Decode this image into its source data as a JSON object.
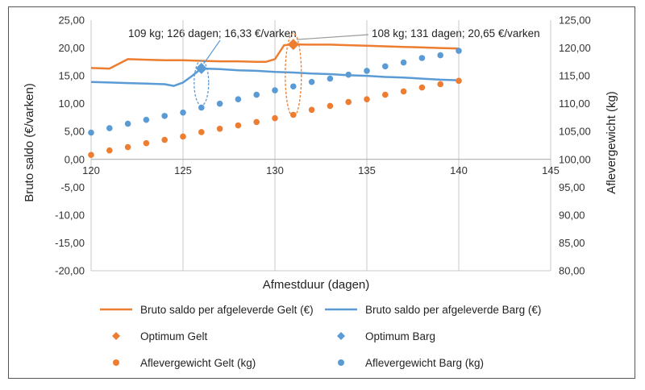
{
  "chart_data": {
    "type": "line",
    "xlabel": "Afmestduur (dagen)",
    "ylabel": "Bruto saldo (€/varken)",
    "y2label": "Aflevergewicht (kg)",
    "xlim": [
      120,
      145
    ],
    "ylim": [
      -20,
      25
    ],
    "y2lim": [
      80,
      125
    ],
    "x_ticks": [
      "120",
      "125",
      "130",
      "135",
      "140",
      "145"
    ],
    "y_ticks": [
      "-20,00",
      "-15,00",
      "-10,00",
      "-5,00",
      "0,00",
      "5,00",
      "10,00",
      "15,00",
      "20,00",
      "25,00"
    ],
    "y2_ticks": [
      "80,00",
      "85,00",
      "90,00",
      "95,00",
      "100,00",
      "105,00",
      "110,00",
      "115,00",
      "120,00",
      "125,00"
    ],
    "grid": "vertical",
    "colors": {
      "gelt": "#ed7d31",
      "barg": "#5b9bd5"
    },
    "series": [
      {
        "name": "Bruto saldo per afgeleverde Gelt (€)",
        "kind": "line",
        "axis": "left",
        "color": "#ed7d31",
        "x": [
          120,
          121,
          122,
          123,
          124,
          125,
          126,
          127,
          128,
          129,
          129.5,
          130,
          130.5,
          131,
          132,
          133,
          134,
          135,
          136,
          137,
          138,
          139,
          140
        ],
        "values": [
          16.4,
          16.3,
          18.0,
          17.9,
          17.8,
          17.8,
          17.7,
          17.6,
          17.6,
          17.5,
          17.5,
          18.0,
          20.5,
          20.65,
          20.6,
          20.6,
          20.5,
          20.4,
          20.3,
          20.2,
          20.1,
          20.0,
          19.9
        ]
      },
      {
        "name": "Bruto saldo per afgeleverde Barg (€)",
        "kind": "line",
        "axis": "left",
        "color": "#5b9bd5",
        "x": [
          120,
          121,
          122,
          123,
          124,
          124.5,
          125,
          125.5,
          126,
          127,
          128,
          129,
          130,
          131,
          132,
          133,
          134,
          135,
          136,
          137,
          138,
          139,
          140
        ],
        "values": [
          13.9,
          13.8,
          13.7,
          13.6,
          13.5,
          13.2,
          13.8,
          15.0,
          16.33,
          16.2,
          16.0,
          15.9,
          15.7,
          15.6,
          15.4,
          15.3,
          15.1,
          15.0,
          14.8,
          14.7,
          14.5,
          14.3,
          14.2
        ]
      },
      {
        "name": "Optimum Gelt",
        "kind": "marker-diamond",
        "axis": "left",
        "color": "#ed7d31",
        "x": [
          131
        ],
        "values": [
          20.65
        ]
      },
      {
        "name": "Optimum Barg",
        "kind": "marker-diamond",
        "axis": "left",
        "color": "#5b9bd5",
        "x": [
          126
        ],
        "values": [
          16.33
        ]
      },
      {
        "name": "Aflevergewicht  Gelt (kg)",
        "kind": "marker-circle",
        "axis": "right",
        "color": "#ed7d31",
        "x": [
          120,
          121,
          122,
          123,
          124,
          125,
          126,
          127,
          128,
          129,
          130,
          131,
          132,
          133,
          134,
          135,
          136,
          137,
          138,
          139,
          140
        ],
        "values": [
          100.8,
          101.6,
          102.2,
          102.9,
          103.5,
          104.1,
          104.9,
          105.5,
          106.1,
          106.7,
          107.4,
          108.0,
          108.9,
          109.6,
          110.3,
          110.8,
          111.6,
          112.2,
          112.9,
          113.5,
          114.1
        ]
      },
      {
        "name": "Aflevergewicht  Barg (kg)",
        "kind": "marker-circle",
        "axis": "right",
        "color": "#5b9bd5",
        "x": [
          120,
          121,
          122,
          123,
          124,
          125,
          126,
          127,
          128,
          129,
          130,
          131,
          132,
          133,
          134,
          135,
          136,
          137,
          138,
          139,
          140
        ],
        "values": [
          104.8,
          105.6,
          106.4,
          107.1,
          107.8,
          108.4,
          109.3,
          110.0,
          110.8,
          111.6,
          112.4,
          113.1,
          113.9,
          114.5,
          115.2,
          115.9,
          116.7,
          117.4,
          118.2,
          118.7,
          119.5
        ]
      }
    ],
    "annotations": [
      {
        "text": "109 kg; 126 dagen; 16,33 €/varken",
        "x": 126,
        "y": 16.33,
        "series": "Barg"
      },
      {
        "text": "108 kg; 131 dagen; 20,65 €/varken",
        "x": 131,
        "y": 20.65,
        "series": "Gelt"
      }
    ],
    "legend_placement": "bottom"
  }
}
